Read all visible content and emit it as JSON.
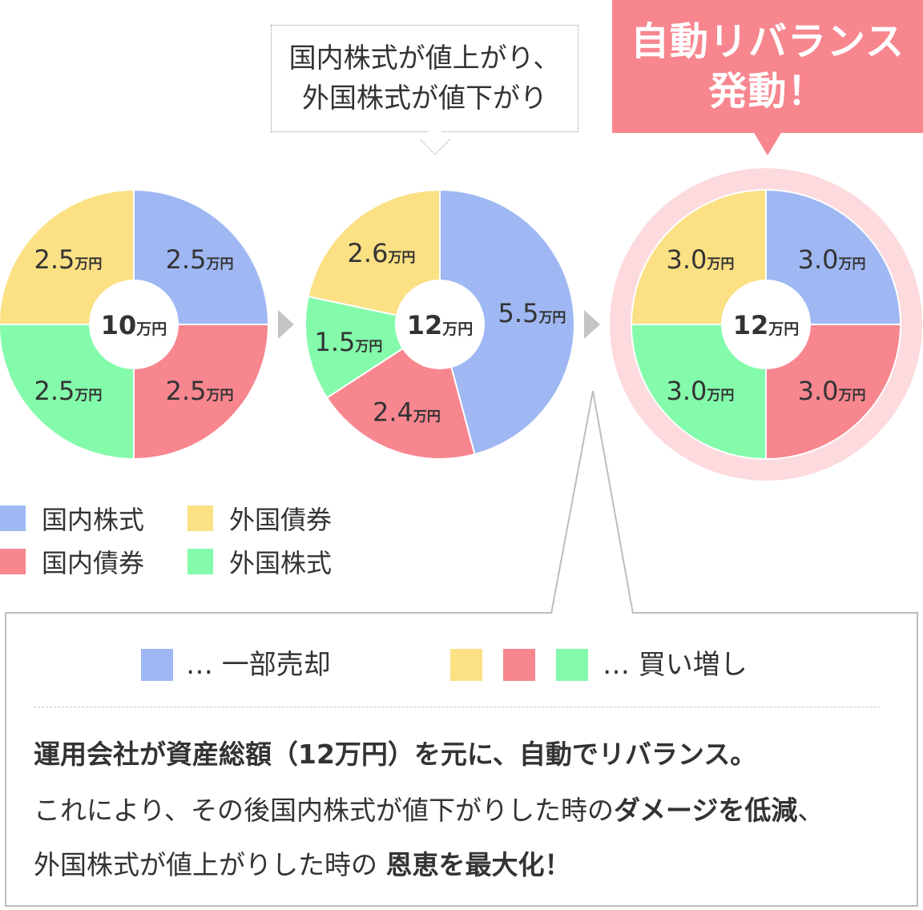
{
  "colors": {
    "domestic_stock": "#9fb8f3",
    "domestic_bond": "#f7868f",
    "foreign_bond": "#fbe084",
    "foreign_stock": "#83fbab",
    "banner": "#f7868f",
    "ring": "#fcdade",
    "arrow": "#c4c4c4"
  },
  "callout": {
    "line1": "国内株式が値上がり、",
    "line2": "外国株式が値下がり"
  },
  "banner": {
    "line1": "自動リバランス",
    "line2": "発動！"
  },
  "legend": {
    "domestic_stock": "国内株式",
    "domestic_bond": "国内債券",
    "foreign_bond": "外国債券",
    "foreign_stock": "外国株式"
  },
  "actions": {
    "sell_label": "… 一部売却",
    "buy_label": "… 買い増し"
  },
  "description": {
    "line1": "運用会社が資産総額（12万円）を元に、自動でリバランス。",
    "line2_a": "これにより、その後国内株式が値下がりした時の",
    "line2_bold": "ダメージを低減",
    "line2_c": "、",
    "line3_a": "外国株式が値上がりした時の ",
    "line3_bold": "恩恵を最大化！"
  },
  "unit": "万円",
  "chart_data": [
    {
      "type": "pie",
      "total_label": "10",
      "categories": [
        "国内株式",
        "国内債券",
        "外国株式",
        "外国債券"
      ],
      "values": [
        2.5,
        2.5,
        2.5,
        2.5
      ],
      "value_labels": [
        "2.5",
        "2.5",
        "2.5",
        "2.5"
      ]
    },
    {
      "type": "pie",
      "total_label": "12",
      "categories": [
        "国内株式",
        "国内債券",
        "外国株式",
        "外国債券"
      ],
      "values": [
        5.5,
        2.4,
        1.5,
        2.6
      ],
      "value_labels": [
        "5.5",
        "2.4",
        "1.5",
        "2.6"
      ]
    },
    {
      "type": "pie",
      "total_label": "12",
      "categories": [
        "国内株式",
        "国内債券",
        "外国株式",
        "外国債券"
      ],
      "values": [
        3.0,
        3.0,
        3.0,
        3.0
      ],
      "value_labels": [
        "3.0",
        "3.0",
        "3.0",
        "3.0"
      ]
    }
  ]
}
